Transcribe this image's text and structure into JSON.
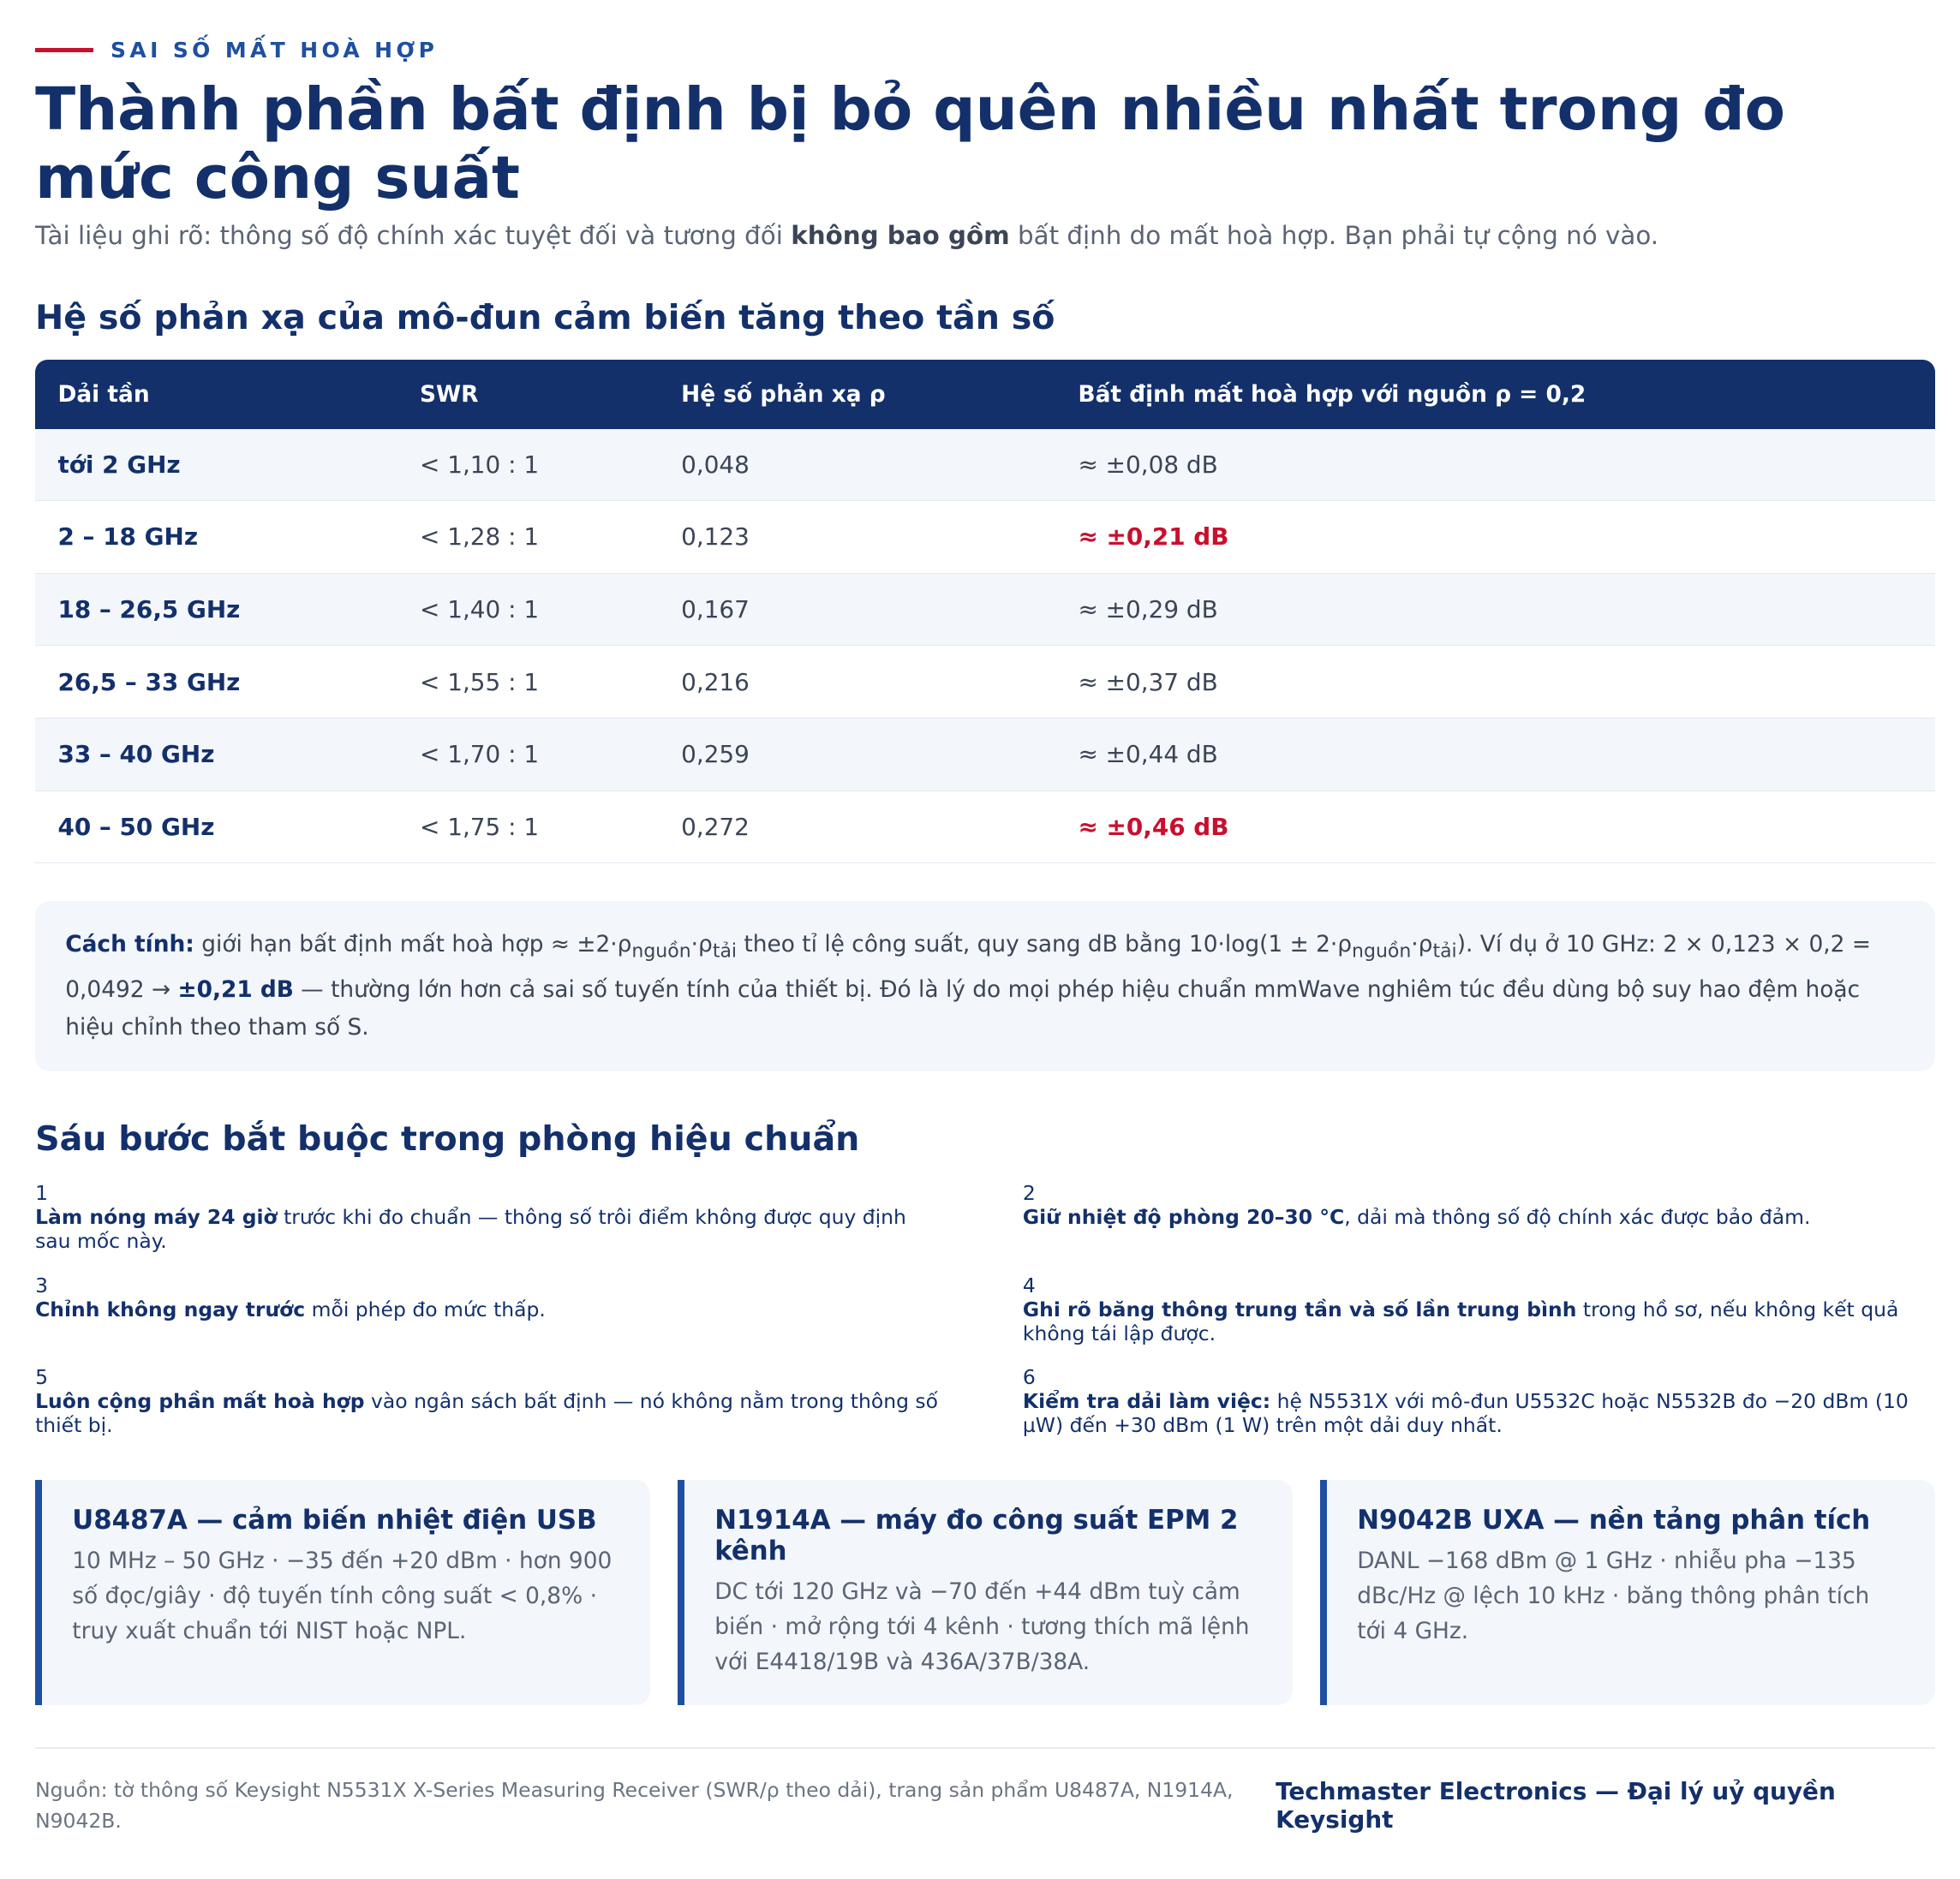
{
  "header": {
    "eyebrow": "SAI SỐ MẤT HOÀ HỢP",
    "title": "Thành phần bất định bị bỏ quên nhiều nhất trong đo mức công suất",
    "subtitle": {
      "before": "Tài liệu ghi rõ: thông số độ chính xác tuyệt đối và tương đối ",
      "strong": "không bao gồm",
      "after": " bất định do mất hoà hợp. Bạn phải tự cộng nó vào."
    }
  },
  "table_section": {
    "heading": "Hệ số phản xạ của mô-đun cảm biến tăng theo tần số",
    "columns": [
      "Dải tần",
      "SWR",
      "Hệ số phản xạ ρ",
      "Bất định mất hoà hợp với nguồn ρ = 0,2"
    ],
    "rows": [
      [
        "tới 2 GHz",
        "< 1,10 : 1",
        "0,048",
        "≈ ±0,08 dB"
      ],
      [
        "2 – 18 GHz",
        "< 1,28 : 1",
        "0,123",
        "≈ ±0,21 dB"
      ],
      [
        "18 – 26,5 GHz",
        "< 1,40 : 1",
        "0,167",
        "≈ ±0,29 dB"
      ],
      [
        "26,5 – 33 GHz",
        "< 1,55 : 1",
        "0,216",
        "≈ ±0,37 dB"
      ],
      [
        "33 – 40 GHz",
        "< 1,70 : 1",
        "0,259",
        "≈ ±0,44 dB"
      ],
      [
        "40 – 50 GHz",
        "< 1,75 : 1",
        "0,272",
        "≈ ±0,46 dB"
      ]
    ],
    "highlighted_rows": [
      1,
      5
    ],
    "highlight_color": "#c8102e"
  },
  "formula_note": [
    {
      "kind": "strong",
      "text": "Cách tính:"
    },
    {
      "kind": "text",
      "text": " giới hạn bất định mất hoà hợp ≈ ±2·ρ"
    },
    {
      "kind": "sub",
      "text": "nguồn"
    },
    {
      "kind": "text",
      "text": "·ρ"
    },
    {
      "kind": "sub",
      "text": "tải"
    },
    {
      "kind": "text",
      "text": " theo tỉ lệ công suất, quy sang dB bằng 10·log(1 ± 2·ρ"
    },
    {
      "kind": "sub",
      "text": "nguồn"
    },
    {
      "kind": "text",
      "text": "·ρ"
    },
    {
      "kind": "sub",
      "text": "tải"
    },
    {
      "kind": "text",
      "text": "). Ví dụ ở 10 GHz: 2 × 0,123 × 0,2 = 0,0492 → "
    },
    {
      "kind": "strong",
      "text": "±0,21 dB"
    },
    {
      "kind": "text",
      "text": " — thường lớn hơn cả sai số tuyến tính của thiết bị. Đó là lý do mọi phép hiệu chuẩn mmWave nghiêm túc đều dùng bộ suy hao đệm hoặc hiệu chỉnh theo tham số S."
    }
  ],
  "steps_section": {
    "heading": "Sáu bước bắt buộc trong phòng hiệu chuẩn",
    "steps": [
      {
        "number": "1",
        "strong": "Làm nóng máy 24 giờ",
        "text": " trước khi đo chuẩn — thông số trôi điểm không được quy định sau mốc này."
      },
      {
        "number": "2",
        "strong": "Giữ nhiệt độ phòng 20–30 °C",
        "text": ", dải mà thông số độ chính xác được bảo đảm."
      },
      {
        "number": "3",
        "strong": "Chỉnh không ngay trước",
        "text": " mỗi phép đo mức thấp."
      },
      {
        "number": "4",
        "strong": "Ghi rõ băng thông trung tần và số lần trung bình",
        "text": " trong hồ sơ, nếu không kết quả không tái lập được."
      },
      {
        "number": "5",
        "strong": "Luôn cộng phần mất hoà hợp",
        "text": " vào ngân sách bất định — nó không nằm trong thông số thiết bị."
      },
      {
        "number": "6",
        "strong": "Kiểm tra dải làm việc:",
        "text": " hệ N5531X với mô-đun U5532C hoặc N5532B đo −20 dBm (10 µW) đến +30 dBm (1 W) trên một dải duy nhất."
      }
    ]
  },
  "cards": [
    {
      "title": "U8487A — cảm biến nhiệt điện USB",
      "body": "10 MHz – 50 GHz · −35 đến +20 dBm · hơn 900 số đọc/giây · độ tuyến tính công suất < 0,8% · truy xuất chuẩn tới NIST hoặc NPL."
    },
    {
      "title": "N1914A — máy đo công suất EPM 2 kênh",
      "body": "DC tới 120 GHz và −70 đến +44 dBm tuỳ cảm biến · mở rộng tới 4 kênh · tương thích mã lệnh với E4418/19B và 436A/37B/38A."
    },
    {
      "title": "N9042B UXA — nền tảng phân tích",
      "body": "DANL −168 dBm @ 1 GHz · nhiễu pha −135 dBc/Hz @ lệch 10 kHz · băng thông phân tích tới 4 GHz."
    }
  ],
  "footer": {
    "source": "Nguồn: tờ thông số Keysight N5531X X-Series Measuring Receiver (SWR/ρ theo dải), trang sản phẩm U8487A, N1914A, N9042B.",
    "brand": "Techmaster Electronics — Đại lý uỷ quyền Keysight"
  }
}
